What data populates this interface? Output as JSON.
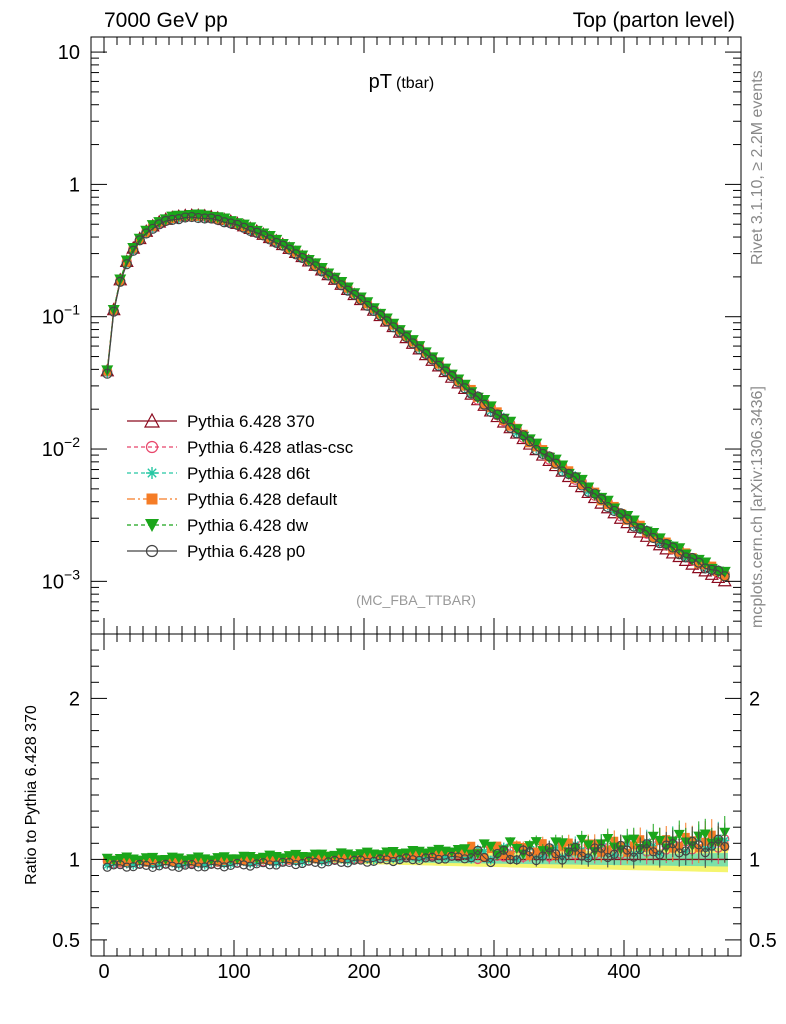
{
  "header": {
    "left": "7000 GeV pp",
    "right": "Top (parton level)"
  },
  "side_text": {
    "top": "Rivet 3.1.10, ≥ 2.2M events",
    "bottom": "mcplots.cern.ch [arXiv:1306.3436]"
  },
  "chart_data": [
    {
      "type": "line",
      "panel": "main",
      "title": "pT",
      "title_sub": "(tbar)",
      "annotation": "(MC_FBA_TTBAR)",
      "yscale": "log",
      "ylim": [
        0.0004,
        13
      ],
      "xlim": [
        -10,
        490
      ],
      "x_ticks": [
        0,
        100,
        200,
        300,
        400
      ],
      "y_ticks": [
        {
          "value": 10,
          "label": "10"
        },
        {
          "value": 1,
          "label": "1"
        },
        {
          "value": 0.1,
          "label": "10",
          "exp": "−1"
        },
        {
          "value": 0.01,
          "label": "10",
          "exp": "−2"
        },
        {
          "value": 0.001,
          "label": "10",
          "exp": "−3"
        }
      ],
      "x": [
        2.5,
        7.5,
        12.5,
        17.5,
        22.5,
        27.5,
        32.5,
        37.5,
        42.5,
        47.5,
        52.5,
        57.5,
        62.5,
        67.5,
        72.5,
        77.5,
        82.5,
        87.5,
        92.5,
        97.5,
        102.5,
        107.5,
        112.5,
        117.5,
        122.5,
        127.5,
        132.5,
        137.5,
        142.5,
        147.5,
        152.5,
        157.5,
        162.5,
        167.5,
        172.5,
        177.5,
        182.5,
        187.5,
        192.5,
        197.5,
        202.5,
        207.5,
        212.5,
        217.5,
        222.5,
        227.5,
        232.5,
        237.5,
        242.5,
        247.5,
        252.5,
        257.5,
        262.5,
        267.5,
        272.5,
        277.5,
        282.5,
        287.5,
        292.5,
        297.5,
        302.5,
        307.5,
        312.5,
        317.5,
        322.5,
        327.5,
        332.5,
        337.5,
        342.5,
        347.5,
        352.5,
        357.5,
        362.5,
        367.5,
        372.5,
        377.5,
        382.5,
        387.5,
        392.5,
        397.5,
        402.5,
        407.5,
        412.5,
        417.5,
        422.5,
        427.5,
        432.5,
        437.5,
        442.5,
        447.5,
        452.5,
        457.5,
        462.5,
        467.5,
        472.5,
        477.5
      ],
      "reference": [
        0.039,
        0.113,
        0.19,
        0.262,
        0.33,
        0.39,
        0.442,
        0.486,
        0.52,
        0.545,
        0.563,
        0.575,
        0.582,
        0.585,
        0.584,
        0.579,
        0.57,
        0.558,
        0.543,
        0.526,
        0.507,
        0.487,
        0.465,
        0.443,
        0.42,
        0.397,
        0.374,
        0.351,
        0.328,
        0.306,
        0.285,
        0.264,
        0.245,
        0.226,
        0.208,
        0.192,
        0.176,
        0.161,
        0.147,
        0.135,
        0.123,
        0.112,
        0.102,
        0.0927,
        0.0843,
        0.0765,
        0.0695,
        0.063,
        0.0571,
        0.0517,
        0.0469,
        0.0425,
        0.0385,
        0.0349,
        0.0316,
        0.0287,
        0.026,
        0.0236,
        0.0214,
        0.0194,
        0.0176,
        0.016,
        0.0145,
        0.0132,
        0.012,
        0.0109,
        0.0099,
        0.009,
        0.0082,
        0.0075,
        0.0068,
        0.0062,
        0.0057,
        0.0052,
        0.0047,
        0.0043,
        0.0039,
        0.0036,
        0.0033,
        0.003,
        0.00278,
        0.00256,
        0.00236,
        0.00219,
        0.00203,
        0.00189,
        0.00176,
        0.00164,
        0.00154,
        0.00144,
        0.00135,
        0.00127,
        0.0012,
        0.00113,
        0.00107,
        0.00101
      ],
      "series": [
        {
          "name": "Pythia 6.428 370",
          "color": "#8b0a1e",
          "marker": "triangle-open",
          "dash": "",
          "ratio_offset": 0.0
        },
        {
          "name": "Pythia 6.428 atlas-csc",
          "color": "#e8456a",
          "marker": "circle-open",
          "dash": "4,3",
          "ratio_offset": 0.012
        },
        {
          "name": "Pythia 6.428 d6t",
          "color": "#26c7a3",
          "marker": "star",
          "dash": "4,3",
          "ratio_offset": 0.004
        },
        {
          "name": "Pythia 6.428 default",
          "color": "#f57c26",
          "marker": "square-filled",
          "dash": "8,3,2,3",
          "ratio_offset": 0.02
        },
        {
          "name": "Pythia 6.428 dw",
          "color": "#1aa51a",
          "marker": "triangle-down-filled",
          "dash": "4,3",
          "ratio_offset": 0.035
        },
        {
          "name": "Pythia 6.428 p0",
          "color": "#444444",
          "marker": "circle-open",
          "dash": "",
          "ratio_offset": -0.01
        }
      ],
      "ratio_trend": [
        [
          0,
          -0.03
        ],
        [
          80,
          -0.03
        ],
        [
          200,
          0.0
        ],
        [
          300,
          0.03
        ],
        [
          400,
          0.06
        ],
        [
          480,
          0.1
        ]
      ]
    },
    {
      "type": "line",
      "panel": "ratio",
      "ylabel": "Ratio to Pythia 6.428 370",
      "ylim": [
        0.4,
        2.4
      ],
      "y_ticks": [
        {
          "value": 2,
          "label": "2"
        },
        {
          "value": 1,
          "label": "1"
        },
        {
          "value": 0.5,
          "label": "0.5"
        }
      ],
      "x_ticks": [
        {
          "value": 0,
          "label": "0"
        },
        {
          "value": 100,
          "label": "100"
        },
        {
          "value": 200,
          "label": "200"
        },
        {
          "value": 300,
          "label": "300"
        },
        {
          "value": 400,
          "label": "400"
        }
      ],
      "band_colors": {
        "outer": "#f5f56e",
        "inner": "#7fe0a8"
      }
    }
  ]
}
